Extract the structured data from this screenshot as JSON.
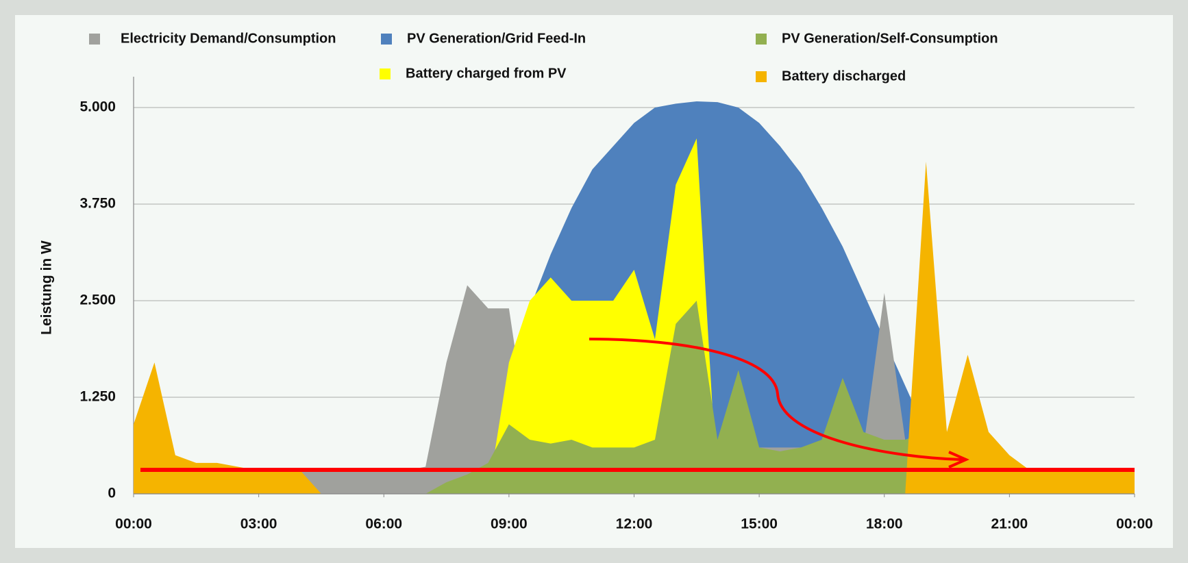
{
  "chart_data": {
    "type": "area",
    "y_label": "Leistung  in W",
    "x": [
      0,
      0.5,
      1,
      1.5,
      2,
      2.5,
      3,
      3.5,
      4,
      4.5,
      5,
      5.5,
      6,
      6.5,
      7,
      7.5,
      8,
      8.5,
      9,
      9.5,
      10,
      10.5,
      11,
      11.5,
      12,
      12.5,
      13,
      13.5,
      14,
      14.5,
      15,
      15.5,
      16,
      16.5,
      17,
      17.5,
      18,
      18.5,
      19,
      19.5,
      20,
      20.5,
      21,
      21.5,
      22,
      22.5,
      23,
      23.5,
      24
    ],
    "xlim": [
      0,
      24
    ],
    "xticks": [
      {
        "value": 0,
        "label": "00:00"
      },
      {
        "value": 3,
        "label": "03:00"
      },
      {
        "value": 6,
        "label": "06:00"
      },
      {
        "value": 9,
        "label": "09:00"
      },
      {
        "value": 12,
        "label": "12:00"
      },
      {
        "value": 15,
        "label": "15:00"
      },
      {
        "value": 18,
        "label": "18:00"
      },
      {
        "value": 21,
        "label": "21:00"
      },
      {
        "value": 24,
        "label": "00:00"
      }
    ],
    "ylim": [
      0,
      5000
    ],
    "yticks": [
      0,
      {
        "value": 1250,
        "label": "1.250"
      },
      {
        "value": 2500,
        "label": "2.500"
      },
      {
        "value": 3750,
        "label": "3.750"
      },
      {
        "value": 5000,
        "label": "5.000"
      }
    ],
    "grid": true,
    "series": [
      {
        "name": "PV Generation/Grid Feed-In",
        "color": "#4f81bd",
        "values": [
          0,
          0,
          0,
          0,
          0,
          0,
          0,
          0,
          0,
          0,
          0,
          0,
          0,
          0,
          0,
          0,
          200,
          700,
          1500,
          2400,
          3100,
          3700,
          4200,
          4500,
          4800,
          5000,
          5050,
          5080,
          5070,
          5000,
          4800,
          4500,
          4150,
          3700,
          3200,
          2600,
          2000,
          1400,
          800,
          300,
          50,
          0,
          0,
          0,
          0,
          0,
          0,
          0,
          0
        ]
      },
      {
        "name": "Electricity Demand/Consumption",
        "color": "#a0a19d",
        "values": [
          300,
          300,
          300,
          300,
          300,
          300,
          300,
          300,
          300,
          300,
          300,
          300,
          300,
          300,
          350,
          1700,
          2700,
          2400,
          2400,
          600,
          600,
          600,
          600,
          600,
          600,
          600,
          600,
          600,
          600,
          600,
          600,
          600,
          600,
          600,
          600,
          600,
          2600,
          700,
          600,
          400,
          300,
          300,
          300,
          300,
          300,
          300,
          300,
          300,
          300
        ]
      },
      {
        "name": "Battery charged from PV",
        "color": "#ffff00",
        "values": [
          0,
          0,
          0,
          0,
          0,
          0,
          0,
          0,
          0,
          0,
          0,
          0,
          0,
          0,
          0,
          0,
          0,
          0,
          1700,
          2500,
          2800,
          2500,
          2500,
          2500,
          2900,
          2000,
          4000,
          4600,
          0,
          0,
          0,
          0,
          0,
          0,
          0,
          0,
          0,
          0,
          0,
          0,
          0,
          0,
          0,
          0,
          0,
          0,
          0,
          0,
          0
        ]
      },
      {
        "name": "PV Generation/Self-Consumption",
        "color": "#92b050",
        "values": [
          0,
          0,
          0,
          0,
          0,
          0,
          0,
          0,
          0,
          0,
          0,
          0,
          0,
          0,
          0,
          150,
          250,
          400,
          900,
          700,
          650,
          700,
          600,
          600,
          600,
          700,
          2200,
          2500,
          700,
          1600,
          600,
          550,
          600,
          700,
          1500,
          800,
          700,
          700,
          800,
          500,
          200,
          80,
          0,
          0,
          0,
          0,
          0,
          0,
          0
        ]
      },
      {
        "name": "Battery discharged",
        "color": "#f5b400",
        "values": [
          900,
          1700,
          500,
          400,
          400,
          350,
          300,
          300,
          300,
          0,
          0,
          0,
          0,
          0,
          0,
          0,
          0,
          0,
          0,
          0,
          0,
          0,
          0,
          0,
          0,
          0,
          0,
          0,
          0,
          0,
          0,
          0,
          0,
          0,
          0,
          0,
          0,
          0,
          4300,
          800,
          1800,
          800,
          500,
          300,
          300,
          300,
          300,
          300,
          300
        ]
      }
    ]
  }
}
